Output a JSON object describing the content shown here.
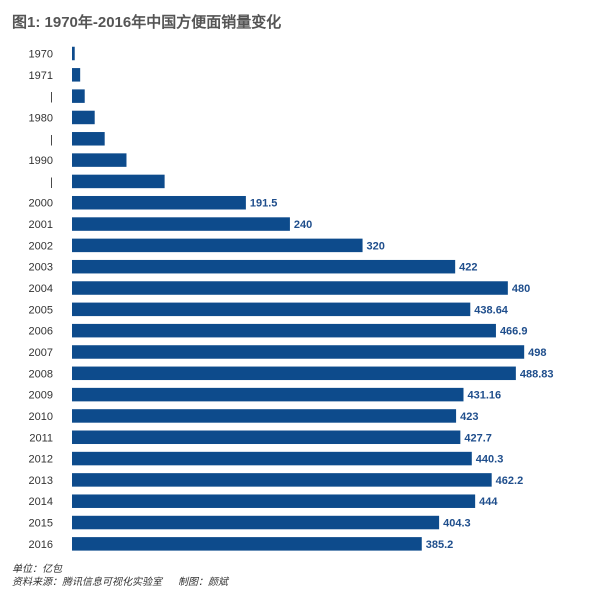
{
  "title": "图1: 1970年-2016年中国方便面销量变化",
  "footer": {
    "unit": "单位：亿包",
    "source": "资料来源：腾讯信息可视化实验室",
    "author": "制图：颜斌"
  },
  "colors": {
    "bar": "#0d4b8c",
    "label": "#1f4e8c",
    "axis": "#333333"
  },
  "chart_data": {
    "type": "bar",
    "orientation": "horizontal",
    "title": "图1: 1970年-2016年中国方便面销量变化",
    "unit": "亿包",
    "categories": [
      "1970",
      "1971",
      "|",
      "1980",
      "|",
      "1990",
      "|",
      "2000",
      "2001",
      "2002",
      "2003",
      "2004",
      "2005",
      "2006",
      "2007",
      "2008",
      "2009",
      "2010",
      "2011",
      "2012",
      "2013",
      "2014",
      "2015",
      "2016"
    ],
    "values": [
      3,
      9,
      14,
      25,
      36,
      60,
      102,
      191.5,
      240,
      320,
      422,
      480,
      438.64,
      466.9,
      498,
      488.83,
      431.16,
      423,
      427.7,
      440.3,
      462.2,
      444,
      404.3,
      385.2
    ],
    "data_labels": [
      "",
      "",
      "",
      "",
      "",
      "",
      "",
      "191.5",
      "240",
      "320",
      "422",
      "480",
      "438.64",
      "466.9",
      "498",
      "488.83",
      "431.16",
      "423",
      "427.7",
      "440.3",
      "462.2",
      "444",
      "404.3",
      "385.2"
    ],
    "xlim": [
      0,
      500
    ],
    "grid": false,
    "legend": "none"
  }
}
